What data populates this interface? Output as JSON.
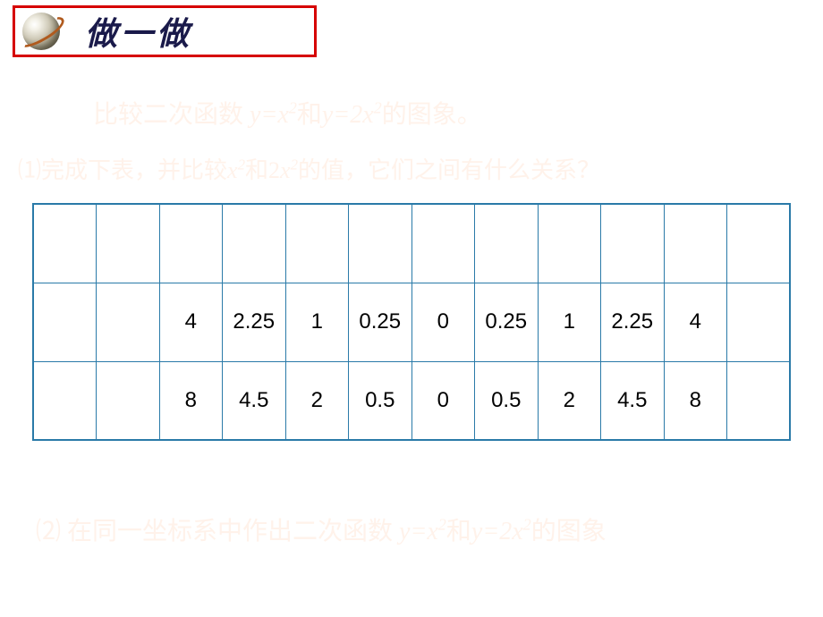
{
  "colors": {
    "header_border": "#d60000",
    "title_color": "#1a1a4a",
    "faint_text": "#fff2ea",
    "table_border": "#2a7aa8",
    "cell_text": "#000000"
  },
  "header": {
    "title": "做一做"
  },
  "body": {
    "line1_a": "比较二次函数",
    "line1_b": " y=x",
    "line1_c": "和",
    "line1_d": "y=",
    "line1_e": "2x",
    "line1_f": "的图象。",
    "line2_prefix": "⑴",
    "line2_a": "完成下表，并比较",
    "line2_b": "x",
    "line2_c": "和2",
    "line2_d": "x",
    "line2_e": "的值，它们之间有什么关系？",
    "line3_prefix": "⑵",
    "line3_a": " 在同一坐标系中作出二次函数   ",
    "line3_b": "y=x",
    "line3_c": "和",
    "line3_d": "y=",
    "line3_e": "2x",
    "line3_f": "的图象"
  },
  "table": {
    "border_color": "#2a7aa8",
    "rows": [
      [
        "",
        "",
        "",
        "",
        "",
        "",
        "",
        "",
        "",
        "",
        "",
        ""
      ],
      [
        "",
        "",
        "4",
        "2.25",
        "1",
        "0.25",
        "0",
        "0.25",
        "1",
        "2.25",
        "4",
        ""
      ],
      [
        "",
        "",
        "8",
        "4.5",
        "2",
        "0.5",
        "0",
        "0.5",
        "2",
        "4.5",
        "8",
        ""
      ]
    ],
    "cell_fontsize": 24
  }
}
